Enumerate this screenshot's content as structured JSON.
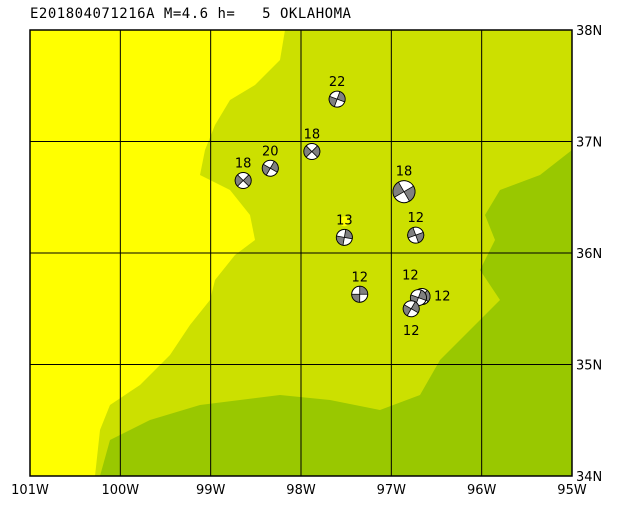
{
  "title": "E201804071216A M=4.6 h=   5 OKLAHOMA",
  "map": {
    "lon_range": [
      -101,
      -95
    ],
    "lat_range": [
      34,
      38
    ],
    "x_ticks": [
      "101W",
      "100W",
      "99W",
      "98W",
      "97W",
      "96W",
      "95W"
    ],
    "y_ticks": [
      "34N",
      "35N",
      "36N",
      "37N",
      "38N"
    ],
    "colors": {
      "low_elev": "#ffff00",
      "mid_elev": "#cce000",
      "high_elev": "#99c800",
      "compression": "#808080",
      "dilatation": "#ffffff",
      "highlight": "#ffff00"
    }
  },
  "events": [
    {
      "label": "22",
      "lon": -97.6,
      "lat": 37.38
    },
    {
      "label": "18",
      "lon": -97.88,
      "lat": 36.91
    },
    {
      "label": "20",
      "lon": -98.34,
      "lat": 36.76
    },
    {
      "label": "18",
      "lon": -98.64,
      "lat": 36.65
    },
    {
      "label": "18",
      "lon": -96.86,
      "lat": 36.55
    },
    {
      "label": "13",
      "lon": -97.52,
      "lat": 36.14
    },
    {
      "label": "12",
      "lon": -96.73,
      "lat": 36.16
    },
    {
      "label": "12",
      "lon": -97.35,
      "lat": 35.63
    },
    {
      "label": "12",
      "lon": -96.66,
      "lat": 35.61
    },
    {
      "label": "12",
      "lon": -96.7,
      "lat": 35.6
    },
    {
      "label": "12",
      "lon": -96.78,
      "lat": 35.5
    }
  ]
}
